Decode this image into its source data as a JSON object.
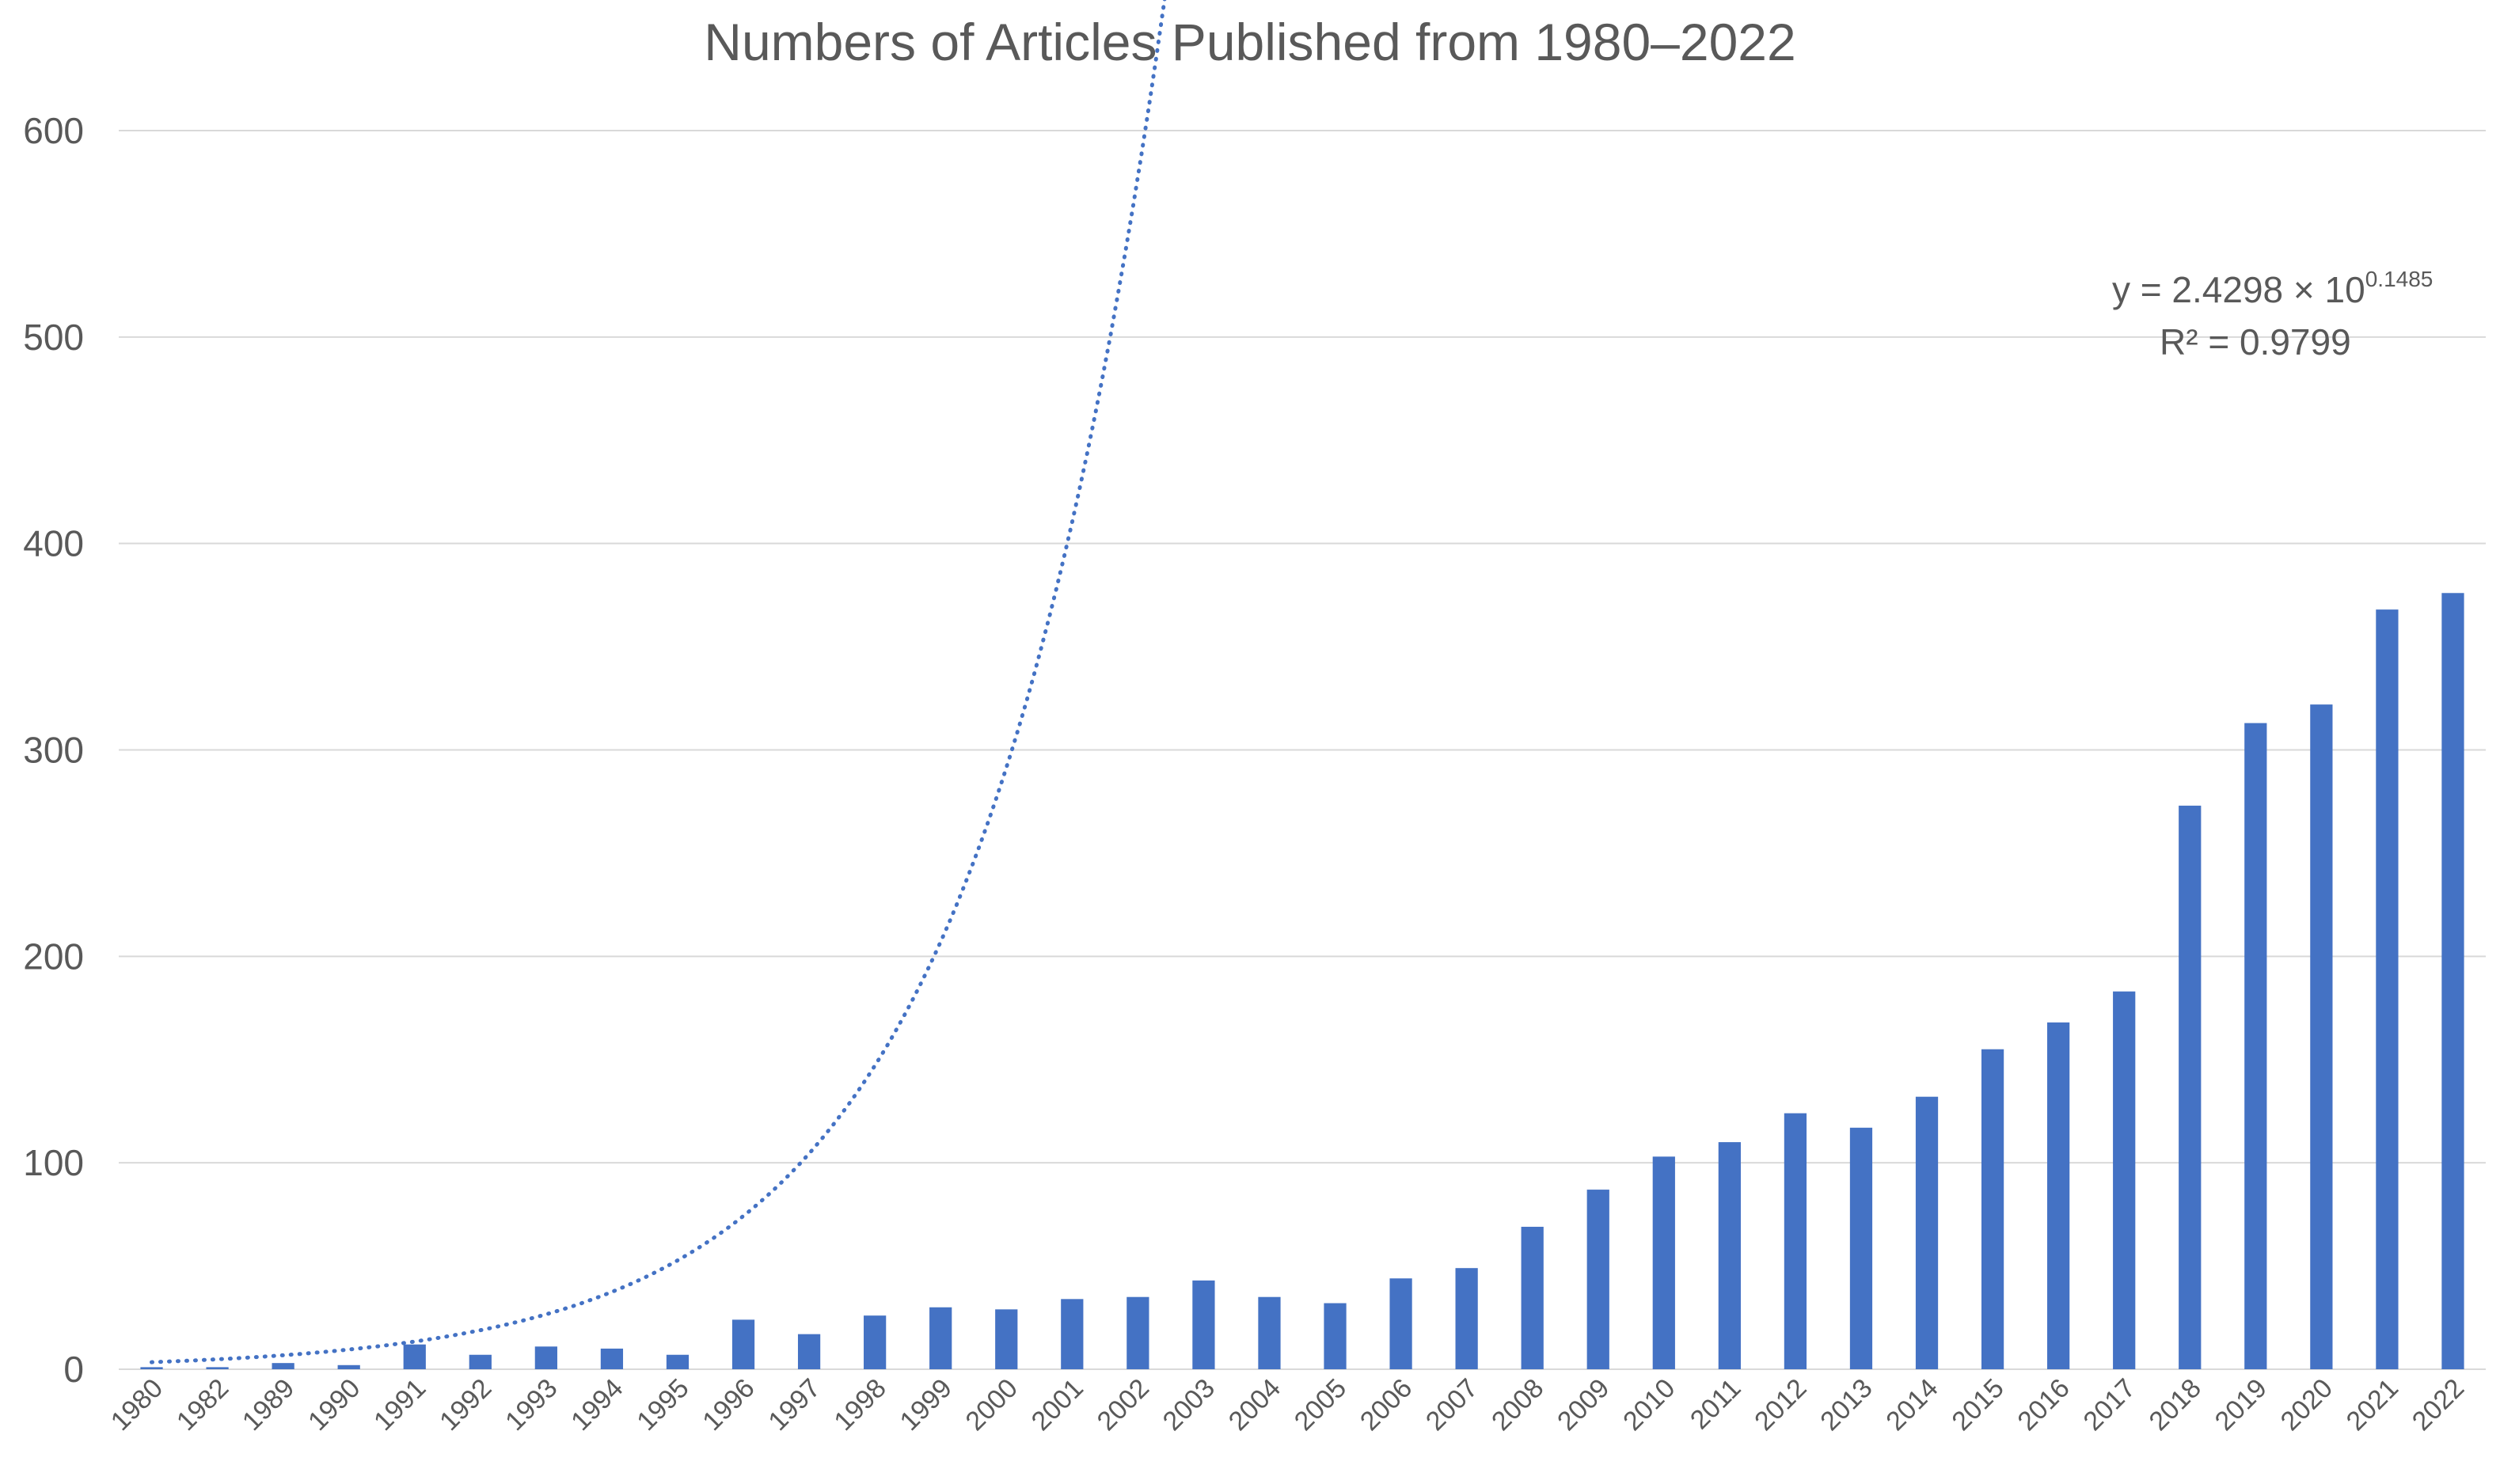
{
  "chart_data": {
    "type": "bar",
    "title": "Numbers of Articles Published from 1980–2022",
    "xlabel": "",
    "ylabel": "",
    "ylim": [
      0,
      600
    ],
    "yticks": [
      "0",
      "100",
      "200",
      "300",
      "400",
      "500",
      "600"
    ],
    "grid": true,
    "legend": "none",
    "bar_color": "#4472c4",
    "categories": [
      "1980",
      "1982",
      "1989",
      "1990",
      "1991",
      "1992",
      "1993",
      "1994",
      "1995",
      "1996",
      "1997",
      "1998",
      "1999",
      "2000",
      "2001",
      "2002",
      "2003",
      "2004",
      "2005",
      "2006",
      "2007",
      "2008",
      "2009",
      "2010",
      "2011",
      "2012",
      "2013",
      "2014",
      "2015",
      "2016",
      "2017",
      "2018",
      "2019",
      "2020",
      "2021",
      "2022"
    ],
    "values": [
      1,
      1,
      3,
      2,
      12,
      7,
      11,
      10,
      7,
      24,
      17,
      26,
      30,
      29,
      34,
      35,
      43,
      35,
      32,
      44,
      49,
      69,
      87,
      103,
      110,
      124,
      117,
      132,
      155,
      168,
      183,
      273,
      313,
      322,
      368,
      376
    ],
    "trendline": {
      "type": "exponential",
      "style": "dotted",
      "color": "#4472c4",
      "coefficient": 2.4298,
      "exponent_rate": 0.1485,
      "equation_main": "y = 2.4298 × 10",
      "equation_sup": "0.1485",
      "r_squared_label": "R² = 0.9799"
    }
  }
}
